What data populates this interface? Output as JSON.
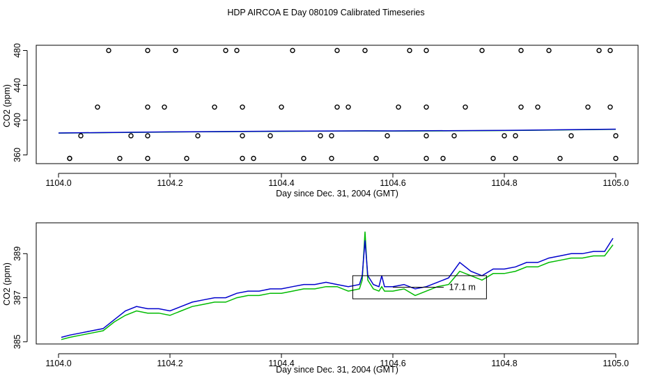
{
  "title": "HDP AIRCOA E  Day 080109  Calibrated Timeseries",
  "colors": {
    "green": "#00bb00",
    "blue": "#0000cc",
    "axis": "#000000",
    "points": "#000000"
  },
  "chart_data": [
    {
      "type": "scatter",
      "xlabel": "Day since Dec. 31, 2004 (GMT)",
      "ylabel": "CO2 (ppm)",
      "xlim": [
        1104.0,
        1105.0
      ],
      "ylim": [
        350,
        486
      ],
      "x_ticks": [
        "1104.0",
        "1104.2",
        "1104.4",
        "1104.6",
        "1104.8",
        "1105.0"
      ],
      "y_ticks": [
        "360",
        "400",
        "440",
        "480"
      ],
      "grid": false,
      "points": {
        "x": [
          1104.02,
          1104.09,
          1104.16,
          1104.21,
          1104.3,
          1104.32,
          1104.42,
          1104.5,
          1104.55,
          1104.63,
          1104.66,
          1104.76,
          1104.83,
          1104.88,
          1104.97,
          1104.99,
          1104.07,
          1104.16,
          1104.19,
          1104.28,
          1104.33,
          1104.4,
          1104.5,
          1104.52,
          1104.61,
          1104.66,
          1104.73,
          1104.83,
          1104.86,
          1104.95,
          1104.99,
          1104.04,
          1104.13,
          1104.16,
          1104.25,
          1104.33,
          1104.38,
          1104.47,
          1104.49,
          1104.59,
          1104.66,
          1104.71,
          1104.8,
          1104.82,
          1104.92,
          1105.0,
          1104.02,
          1104.11,
          1104.16,
          1104.23,
          1104.33,
          1104.35,
          1104.44,
          1104.49,
          1104.57,
          1104.66,
          1104.69,
          1104.78,
          1104.82,
          1104.9,
          1105.0
        ],
        "y": [
          356,
          480,
          480,
          480,
          480,
          480,
          480,
          480,
          480,
          480,
          480,
          480,
          480,
          480,
          480,
          480,
          415,
          415,
          415,
          415,
          415,
          415,
          415,
          415,
          415,
          415,
          415,
          415,
          415,
          415,
          415,
          382,
          382,
          382,
          382,
          382,
          382,
          382,
          382,
          382,
          382,
          382,
          382,
          382,
          382,
          382,
          356,
          356,
          356,
          356,
          356,
          356,
          356,
          356,
          356,
          356,
          356,
          356,
          356,
          356,
          356
        ]
      },
      "series": [
        {
          "x": [
            1104.0,
            1104.2,
            1104.4,
            1104.55,
            1104.6,
            1104.8,
            1105.0
          ],
          "values": [
            385.1,
            386.3,
            387.1,
            387.5,
            387.4,
            388.0,
            389.4
          ]
        },
        {
          "x": [
            1104.0,
            1104.2,
            1104.4,
            1104.55,
            1104.6,
            1104.8,
            1105.0
          ],
          "values": [
            385.2,
            386.5,
            387.3,
            387.7,
            387.6,
            388.2,
            389.6
          ]
        }
      ]
    },
    {
      "type": "line",
      "xlabel": "Day since Dec. 31, 2004 (GMT)",
      "ylabel": "CO2 (ppm)",
      "xlim": [
        1104.0,
        1105.0
      ],
      "ylim": [
        384.9,
        390.4
      ],
      "x_ticks": [
        "1104.0",
        "1104.2",
        "1104.4",
        "1104.6",
        "1104.8",
        "1105.0"
      ],
      "y_ticks": [
        "385",
        "387",
        "389"
      ],
      "grid": false,
      "annotation": {
        "label": "17.1 m",
        "box_x": [
          1104.528,
          1104.768
        ],
        "box_y": [
          386.95,
          388.0
        ]
      },
      "series": [
        {
          "x": [
            1104.005,
            1104.02,
            1104.04,
            1104.06,
            1104.08,
            1104.1,
            1104.12,
            1104.14,
            1104.16,
            1104.18,
            1104.2,
            1104.22,
            1104.24,
            1104.26,
            1104.28,
            1104.3,
            1104.32,
            1104.34,
            1104.36,
            1104.38,
            1104.4,
            1104.42,
            1104.44,
            1104.46,
            1104.48,
            1104.5,
            1104.52,
            1104.54,
            1104.545,
            1104.55,
            1104.555,
            1104.565,
            1104.575,
            1104.58,
            1104.585,
            1104.6,
            1104.62,
            1104.64,
            1104.66,
            1104.68,
            1104.7,
            1104.72,
            1104.74,
            1104.76,
            1104.78,
            1104.8,
            1104.82,
            1104.84,
            1104.86,
            1104.88,
            1104.9,
            1104.92,
            1104.94,
            1104.96,
            1104.98,
            1104.995
          ],
          "values": [
            385.1,
            385.2,
            385.3,
            385.4,
            385.5,
            385.9,
            386.2,
            386.4,
            386.3,
            386.3,
            386.2,
            386.4,
            386.6,
            386.7,
            386.8,
            386.8,
            387.0,
            387.1,
            387.1,
            387.2,
            387.2,
            387.3,
            387.4,
            387.4,
            387.5,
            387.5,
            387.3,
            387.4,
            387.8,
            390.0,
            387.8,
            387.4,
            387.3,
            387.5,
            387.3,
            387.3,
            387.4,
            387.1,
            387.3,
            387.5,
            387.6,
            388.2,
            388.0,
            387.8,
            388.1,
            388.1,
            388.2,
            388.4,
            388.4,
            388.6,
            388.7,
            388.8,
            388.8,
            388.9,
            388.9,
            389.4
          ]
        },
        {
          "x": [
            1104.005,
            1104.02,
            1104.04,
            1104.06,
            1104.08,
            1104.1,
            1104.12,
            1104.14,
            1104.16,
            1104.18,
            1104.2,
            1104.22,
            1104.24,
            1104.26,
            1104.28,
            1104.3,
            1104.32,
            1104.34,
            1104.36,
            1104.38,
            1104.4,
            1104.42,
            1104.44,
            1104.46,
            1104.48,
            1104.5,
            1104.52,
            1104.54,
            1104.545,
            1104.55,
            1104.555,
            1104.565,
            1104.575,
            1104.58,
            1104.585,
            1104.6,
            1104.62,
            1104.64,
            1104.66,
            1104.68,
            1104.7,
            1104.72,
            1104.74,
            1104.76,
            1104.78,
            1104.8,
            1104.82,
            1104.84,
            1104.86,
            1104.88,
            1104.9,
            1104.92,
            1104.94,
            1104.96,
            1104.98,
            1104.995
          ],
          "values": [
            385.2,
            385.3,
            385.4,
            385.5,
            385.6,
            386.0,
            386.4,
            386.6,
            386.5,
            386.5,
            386.4,
            386.6,
            386.8,
            386.9,
            387.0,
            387.0,
            387.2,
            387.3,
            387.3,
            387.4,
            387.4,
            387.5,
            387.6,
            387.6,
            387.7,
            387.6,
            387.5,
            387.6,
            388.0,
            389.6,
            388.0,
            387.6,
            387.5,
            388.0,
            387.5,
            387.5,
            387.6,
            387.4,
            387.5,
            387.7,
            387.9,
            388.6,
            388.2,
            388.0,
            388.3,
            388.3,
            388.4,
            388.6,
            388.6,
            388.8,
            388.9,
            389.0,
            389.0,
            389.1,
            389.1,
            389.7
          ]
        }
      ]
    }
  ]
}
